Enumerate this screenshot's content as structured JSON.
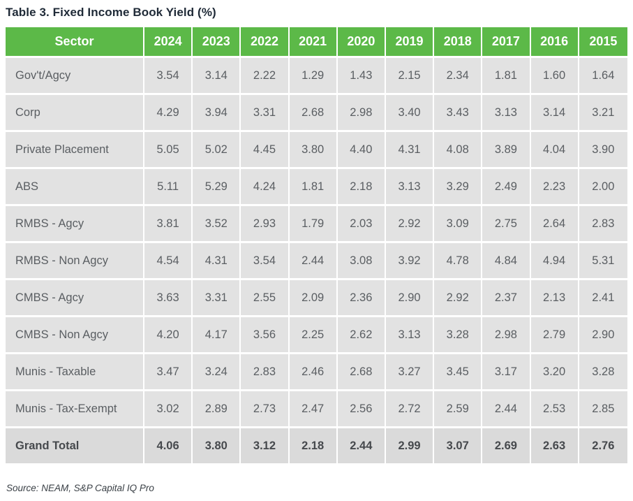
{
  "title": "Table 3. Fixed Income Book Yield (%)",
  "source_note": "Source: NEAM, S&P Capital IQ Pro",
  "colors": {
    "header_bg": "#5cb948",
    "header_text": "#ffffff",
    "row_bg": "#e2e2e2",
    "total_row_bg": "#dadada",
    "body_text": "#5a5e62",
    "total_text": "#46494d",
    "title_text": "#1f2a37"
  },
  "chart_data": {
    "type": "table",
    "title": "Table 3. Fixed Income Book Yield (%)",
    "columns": [
      "Sector",
      "2024",
      "2023",
      "2022",
      "2021",
      "2020",
      "2019",
      "2018",
      "2017",
      "2016",
      "2015"
    ],
    "rows": [
      {
        "sector": "Gov't/Agcy",
        "values": [
          "3.54",
          "3.14",
          "2.22",
          "1.29",
          "1.43",
          "2.15",
          "2.34",
          "1.81",
          "1.60",
          "1.64"
        ]
      },
      {
        "sector": "Corp",
        "values": [
          "4.29",
          "3.94",
          "3.31",
          "2.68",
          "2.98",
          "3.40",
          "3.43",
          "3.13",
          "3.14",
          "3.21"
        ]
      },
      {
        "sector": "Private Placement",
        "values": [
          "5.05",
          "5.02",
          "4.45",
          "3.80",
          "4.40",
          "4.31",
          "4.08",
          "3.89",
          "4.04",
          "3.90"
        ]
      },
      {
        "sector": "ABS",
        "values": [
          "5.11",
          "5.29",
          "4.24",
          "1.81",
          "2.18",
          "3.13",
          "3.29",
          "2.49",
          "2.23",
          "2.00"
        ]
      },
      {
        "sector": "RMBS - Agcy",
        "values": [
          "3.81",
          "3.52",
          "2.93",
          "1.79",
          "2.03",
          "2.92",
          "3.09",
          "2.75",
          "2.64",
          "2.83"
        ]
      },
      {
        "sector": "RMBS - Non Agcy",
        "values": [
          "4.54",
          "4.31",
          "3.54",
          "2.44",
          "3.08",
          "3.92",
          "4.78",
          "4.84",
          "4.94",
          "5.31"
        ]
      },
      {
        "sector": "CMBS - Agcy",
        "values": [
          "3.63",
          "3.31",
          "2.55",
          "2.09",
          "2.36",
          "2.90",
          "2.92",
          "2.37",
          "2.13",
          "2.41"
        ]
      },
      {
        "sector": "CMBS - Non Agcy",
        "values": [
          "4.20",
          "4.17",
          "3.56",
          "2.25",
          "2.62",
          "3.13",
          "3.28",
          "2.98",
          "2.79",
          "2.90"
        ]
      },
      {
        "sector": "Munis - Taxable",
        "values": [
          "3.47",
          "3.24",
          "2.83",
          "2.46",
          "2.68",
          "3.27",
          "3.45",
          "3.17",
          "3.20",
          "3.28"
        ]
      },
      {
        "sector": "Munis - Tax-Exempt",
        "values": [
          "3.02",
          "2.89",
          "2.73",
          "2.47",
          "2.56",
          "2.72",
          "2.59",
          "2.44",
          "2.53",
          "2.85"
        ]
      }
    ],
    "total_row": {
      "sector": "Grand Total",
      "values": [
        "4.06",
        "3.80",
        "3.12",
        "2.18",
        "2.44",
        "2.99",
        "3.07",
        "2.69",
        "2.63",
        "2.76"
      ]
    },
    "source": "Source: NEAM, S&P Capital IQ Pro"
  }
}
